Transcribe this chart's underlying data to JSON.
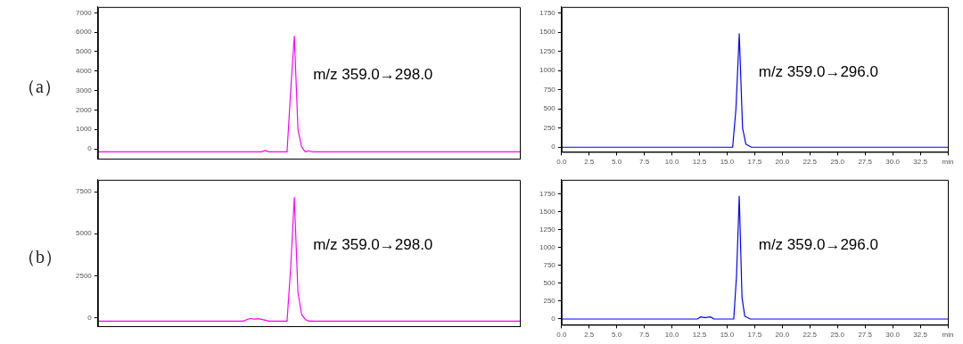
{
  "chart_data": [
    {
      "type": "line",
      "title": "（a）",
      "annotations": [
        "m/z 359.0→298.0"
      ],
      "tick_labels": "y",
      "ylim": [
        -500,
        7300
      ],
      "yticks": [
        0,
        1000,
        2000,
        3000,
        4000,
        5000,
        6000,
        7000
      ],
      "categories": [
        null,
        null,
        null,
        null,
        null,
        null,
        null,
        null,
        null,
        null,
        null,
        null,
        null,
        null,
        null,
        null,
        null,
        null,
        null,
        null,
        null,
        null,
        null,
        null,
        null,
        null,
        null,
        null,
        null,
        null,
        null,
        null,
        null,
        null,
        null,
        null,
        null,
        null,
        null,
        null,
        null,
        null,
        null,
        null,
        null,
        null,
        null,
        null,
        null,
        null,
        null,
        null,
        null,
        null,
        null,
        null,
        null,
        null,
        null,
        null,
        null,
        null,
        null,
        null,
        null,
        null,
        null,
        null,
        null,
        null,
        null,
        null,
        null,
        null,
        null,
        null,
        null,
        null,
        null,
        null,
        null,
        null,
        null,
        null,
        null,
        null,
        null,
        null,
        null,
        null,
        null,
        null,
        null,
        null,
        null,
        null,
        null,
        null,
        null,
        null,
        null,
        null,
        null,
        null,
        null,
        null,
        null,
        null,
        null,
        null,
        null,
        null,
        null,
        null,
        null,
        null,
        null
      ],
      "series": [
        {
          "color": "#ff00ff",
          "values": [
            -150,
            -150,
            -150,
            -150,
            -150,
            -150,
            -150,
            -150,
            -150,
            -150,
            -150,
            -150,
            -150,
            -150,
            -150,
            -150,
            -150,
            -150,
            -150,
            -150,
            -150,
            -150,
            -150,
            -150,
            -150,
            -150,
            -150,
            -150,
            -150,
            -150,
            -150,
            -150,
            -150,
            -150,
            -150,
            -150,
            -150,
            -150,
            -150,
            -150,
            -150,
            -150,
            -150,
            -150,
            -150,
            -150,
            -80,
            -150,
            -150,
            -150,
            -150,
            -150,
            -150,
            3000,
            5800,
            1000,
            100,
            -150,
            -100,
            -150,
            -150,
            -150,
            -150,
            -150,
            -150,
            -150,
            -150,
            -150,
            -150,
            -150,
            -150,
            -150,
            -150,
            -150,
            -150,
            -150,
            -150,
            -150,
            -150,
            -150,
            -150,
            -150,
            -150,
            -150,
            -150,
            -150,
            -150,
            -150,
            -150,
            -150,
            -150,
            -150,
            -150,
            -150,
            -150,
            -150,
            -150,
            -150,
            -150,
            -150,
            -150,
            -150,
            -150,
            -150,
            -150,
            -150,
            -150,
            -150,
            -150,
            -150,
            -150,
            -150,
            -150,
            -150,
            -150,
            -150,
            -150
          ]
        }
      ]
    },
    {
      "type": "line",
      "annotations": [
        "m/z 359.0→296.0"
      ],
      "xlim": [
        0,
        35
      ],
      "xticks": [
        {
          "value": 0,
          "label": "0.0"
        },
        2.5,
        {
          "value": 5,
          "label": "5.0"
        },
        7.5,
        {
          "value": 10,
          "label": "10.0"
        },
        12.5,
        {
          "value": 15,
          "label": "15.0"
        },
        17.5,
        {
          "value": 20,
          "label": "20.0"
        },
        22.5,
        {
          "value": 25,
          "label": "25.0"
        },
        27.5,
        {
          "value": 30,
          "label": "30.0"
        },
        32.5,
        {
          "value": 35,
          "label": "min"
        }
      ],
      "ylim": [
        -60,
        1830
      ],
      "yticks": [
        0,
        250,
        500,
        750,
        1000,
        1250,
        1500,
        1750
      ],
      "series": [
        {
          "color": "#0000ff",
          "x": [
            0,
            15.5,
            15.8,
            16.1,
            16.4,
            16.7,
            17.2,
            35
          ],
          "values": [
            0,
            0,
            500,
            1480,
            250,
            40,
            0,
            0
          ]
        }
      ]
    },
    {
      "type": "line",
      "title": "（b）",
      "annotations": [
        "m/z 359.0→298.0"
      ],
      "tick_labels": "y",
      "ylim": [
        -500,
        8200
      ],
      "yticks": [
        0,
        2500,
        5000,
        7500
      ],
      "categories": [
        null,
        null,
        null,
        null,
        null,
        null,
        null,
        null,
        null,
        null,
        null,
        null,
        null,
        null,
        null,
        null,
        null,
        null,
        null,
        null,
        null,
        null,
        null,
        null,
        null,
        null,
        null,
        null,
        null,
        null,
        null,
        null,
        null,
        null,
        null,
        null,
        null,
        null,
        null,
        null,
        null,
        null,
        null,
        null,
        null,
        null,
        null,
        null,
        null,
        null,
        null,
        null,
        null,
        null,
        null,
        null,
        null,
        null,
        null,
        null,
        null,
        null,
        null,
        null,
        null,
        null,
        null,
        null,
        null,
        null,
        null,
        null,
        null,
        null,
        null,
        null,
        null,
        null,
        null,
        null,
        null,
        null,
        null,
        null,
        null,
        null,
        null,
        null,
        null,
        null,
        null,
        null,
        null,
        null,
        null,
        null,
        null,
        null,
        null,
        null,
        null,
        null,
        null,
        null,
        null,
        null,
        null,
        null,
        null,
        null,
        null,
        null,
        null,
        null,
        null,
        null,
        null
      ],
      "series": [
        {
          "color": "#ff00ff",
          "values": [
            -200,
            -200,
            -200,
            -200,
            -200,
            -200,
            -200,
            -200,
            -200,
            -200,
            -200,
            -200,
            -200,
            -200,
            -200,
            -200,
            -200,
            -200,
            -200,
            -200,
            -200,
            -200,
            -200,
            -200,
            -200,
            -200,
            -200,
            -200,
            -200,
            -200,
            -200,
            -200,
            -200,
            -200,
            -200,
            -200,
            -200,
            -200,
            -200,
            -200,
            -200,
            -100,
            -50,
            -80,
            -60,
            -100,
            -150,
            -200,
            -200,
            -200,
            -200,
            -200,
            -200,
            3000,
            7150,
            1500,
            200,
            -100,
            -200,
            -200,
            -200,
            -200,
            -200,
            -200,
            -200,
            -200,
            -200,
            -200,
            -200,
            -200,
            -200,
            -200,
            -200,
            -200,
            -200,
            -200,
            -200,
            -200,
            -200,
            -200,
            -200,
            -200,
            -200,
            -200,
            -200,
            -200,
            -200,
            -200,
            -200,
            -200,
            -200,
            -200,
            -200,
            -200,
            -200,
            -200,
            -200,
            -200,
            -200,
            -200,
            -200,
            -200,
            -200,
            -200,
            -200,
            -200,
            -200,
            -200,
            -200,
            -200,
            -200,
            -200,
            -200,
            -200,
            -200,
            -200,
            -200
          ]
        }
      ]
    },
    {
      "type": "line",
      "annotations": [
        "m/z 359.0→296.0"
      ],
      "xlim": [
        0,
        35
      ],
      "xticks": [
        {
          "value": 0,
          "label": "0.0"
        },
        2.5,
        {
          "value": 5,
          "label": "5.0"
        },
        7.5,
        {
          "value": 10,
          "label": "10.0"
        },
        12.5,
        {
          "value": 15,
          "label": "15.0"
        },
        17.5,
        {
          "value": 20,
          "label": "20.0"
        },
        22.5,
        {
          "value": 25,
          "label": "25.0"
        },
        27.5,
        {
          "value": 30,
          "label": "30.0"
        },
        32.5,
        {
          "value": 35,
          "label": "min"
        }
      ],
      "ylim": [
        -80,
        1950
      ],
      "yticks": [
        0,
        250,
        500,
        750,
        1000,
        1250,
        1500,
        1750
      ],
      "series": [
        {
          "color": "#0000ff",
          "x": [
            0,
            12.3,
            12.6,
            13.0,
            13.5,
            13.8,
            15.6,
            15.85,
            16.1,
            16.35,
            16.6,
            17.1,
            35
          ],
          "values": [
            0,
            0,
            30,
            20,
            30,
            0,
            0,
            600,
            1720,
            300,
            40,
            0,
            0
          ]
        }
      ]
    }
  ]
}
